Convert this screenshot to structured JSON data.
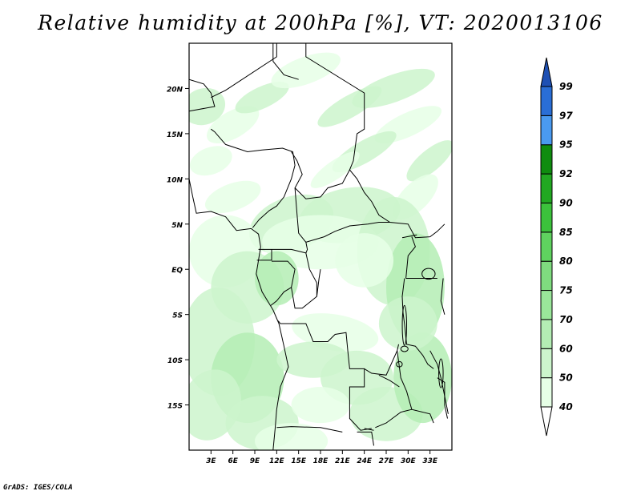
{
  "title": "Relative humidity at 200hPa [%], VT: 2020013106",
  "credit": "GrADS: IGES/COLA",
  "map": {
    "lon_min": 0,
    "lon_max": 36,
    "lat_min": -20,
    "lat_max": 25,
    "lat_ticks": [
      {
        "value": 20,
        "label": "20N"
      },
      {
        "value": 15,
        "label": "15N"
      },
      {
        "value": 10,
        "label": "10N"
      },
      {
        "value": 5,
        "label": "5N"
      },
      {
        "value": 0,
        "label": "EQ"
      },
      {
        "value": -5,
        "label": "5S"
      },
      {
        "value": -10,
        "label": "10S"
      },
      {
        "value": -15,
        "label": "15S"
      }
    ],
    "lon_ticks": [
      {
        "value": 3,
        "label": "3E"
      },
      {
        "value": 6,
        "label": "6E"
      },
      {
        "value": 9,
        "label": "9E"
      },
      {
        "value": 12,
        "label": "12E"
      },
      {
        "value": 15,
        "label": "15E"
      },
      {
        "value": 18,
        "label": "18E"
      },
      {
        "value": 21,
        "label": "21E"
      },
      {
        "value": 24,
        "label": "24E"
      },
      {
        "value": 27,
        "label": "27E"
      },
      {
        "value": 30,
        "label": "30E"
      },
      {
        "value": 33,
        "label": "33E"
      }
    ]
  },
  "colorbar": {
    "levels": [
      "40",
      "50",
      "60",
      "70",
      "75",
      "80",
      "85",
      "90",
      "92",
      "95",
      "97",
      "99"
    ],
    "colors": [
      "#ffffff",
      "#e6ffe6",
      "#ccf5cc",
      "#b4edb4",
      "#9ae69a",
      "#7fdc7f",
      "#5fd25f",
      "#3cc23c",
      "#22a822",
      "#0f8c0f",
      "#4a9af0",
      "#2a6ed6",
      "#1e50b4"
    ]
  },
  "chart_data": {
    "type": "heatmap",
    "title": "Relative humidity at 200hPa [%], VT: 2020013106",
    "variable": "Relative humidity at 200hPa",
    "units": "%",
    "valid_time": "2020013106",
    "lon_range": [
      0,
      36
    ],
    "lat_range": [
      -20,
      25
    ],
    "contour_levels": [
      40,
      50,
      60,
      70,
      75,
      80,
      85,
      90,
      92,
      95,
      97,
      99
    ],
    "colors": [
      "#ffffff",
      "#e6ffe6",
      "#ccf5cc",
      "#b4edb4",
      "#9ae69a",
      "#7fdc7f",
      "#5fd25f",
      "#3cc23c",
      "#22a822",
      "#0f8c0f",
      "#4a9af0",
      "#2a6ed6",
      "#1e50b4"
    ]
  }
}
